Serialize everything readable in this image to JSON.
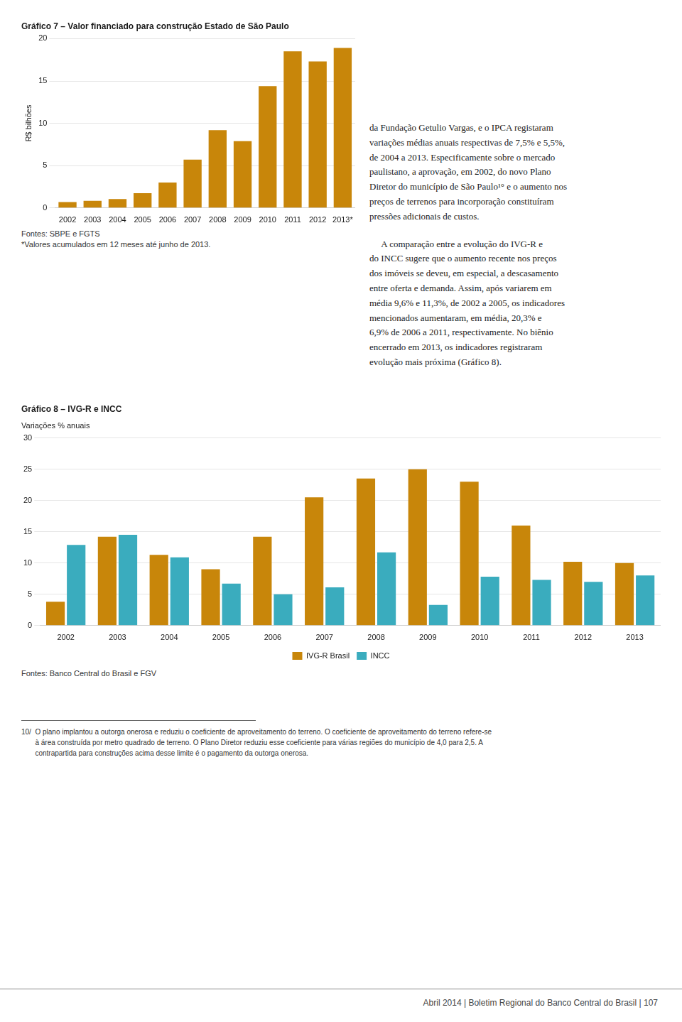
{
  "chart_data": [
    {
      "type": "bar",
      "title": "Gráfico 7 – Valor financiado para construção Estado de São Paulo",
      "y_label": "R$ bilhões",
      "categories": [
        "2002",
        "2003",
        "2004",
        "2005",
        "2006",
        "2007",
        "2008",
        "2009",
        "2010",
        "2011",
        "2012",
        "2013*"
      ],
      "values": [
        0.7,
        0.85,
        1.05,
        1.75,
        3.0,
        5.7,
        9.2,
        7.9,
        14.4,
        18.5,
        17.3,
        18.9
      ],
      "color": "#C8860A",
      "ylim": [
        0,
        20
      ],
      "yticks": [
        0,
        5,
        10,
        15,
        20
      ],
      "grid": true,
      "annotations": [
        "Fontes: SBPE e FGTS",
        "*Valores acumulados em 12 meses até junho de 2013.",
        "da Fundação Getulio Vargas, e o IPCA registaram\nvariações médias anuais respectivas de 7,5% e 5,5%,\nde 2004 a 2013. Especificamente sobre o mercado\npaulistano, a aprovação, em 2002, do novo Plano\nDiretor do município de São Paulo¹° e o aumento nos\npreços de terrenos para incorporação constituíram\npressões adicionais de custos.",
        "     A comparação entre a evolução do IVG-R e\ndo INCC sugere que o aumento recente nos preços\ndos imóveis se deveu, em especial, a descasamento\nentre oferta e demanda. Assim, após variarem em\nmédia 9,6% e 11,3%, de 2002 a 2005, os indicadores\nmencionados aumentaram, em média, 20,3% e\n6,9% de 2006 a 2011, respectivamente. No biênio\nencerrado em 2013, os indicadores registraram\nevolução mais próxima (Gráfico 8)."
      ]
    },
    {
      "type": "bar",
      "title": "Gráfico 8 – IVG-R e INCC",
      "subtitle": "Variações % anuais",
      "categories": [
        "2002",
        "2003",
        "2004",
        "2005",
        "2006",
        "2007",
        "2008",
        "2009",
        "2010",
        "2011",
        "2012",
        "2013"
      ],
      "series": [
        {
          "name": "IVG-R Brasil",
          "color": "#C8860A",
          "values": [
            3.8,
            14.2,
            11.3,
            9.0,
            14.2,
            20.5,
            23.5,
            25.0,
            23.0,
            16.0,
            10.2,
            10.0
          ]
        },
        {
          "name": "INCC",
          "color": "#3AACBE",
          "values": [
            12.9,
            14.5,
            10.9,
            6.7,
            5.0,
            6.1,
            11.7,
            3.3,
            7.8,
            7.3,
            7.0,
            8.0
          ]
        }
      ],
      "ylim": [
        0,
        30
      ],
      "yticks": [
        0,
        5,
        10,
        15,
        20,
        25,
        30
      ],
      "grid": true,
      "legend": "bottom",
      "annotations": [
        "Fontes: Banco Central do Brasil e FGV",
        "10/  O plano implantou a outorga onerosa e reduziu o coeficiente de aproveitamento do terreno. O coeficiente de aproveitamento do terreno refere-se\n       à área construída por metro quadrado de terreno. O Plano Diretor reduziu esse coeficiente para várias regiões do município de 4,0 para 2,5. A\n       contrapartida para construções acima desse limite é o pagamento da outorga onerosa.",
        "Abril 2014  |  Boletim Regional do Banco Central do Brasil  |  107"
      ]
    }
  ]
}
